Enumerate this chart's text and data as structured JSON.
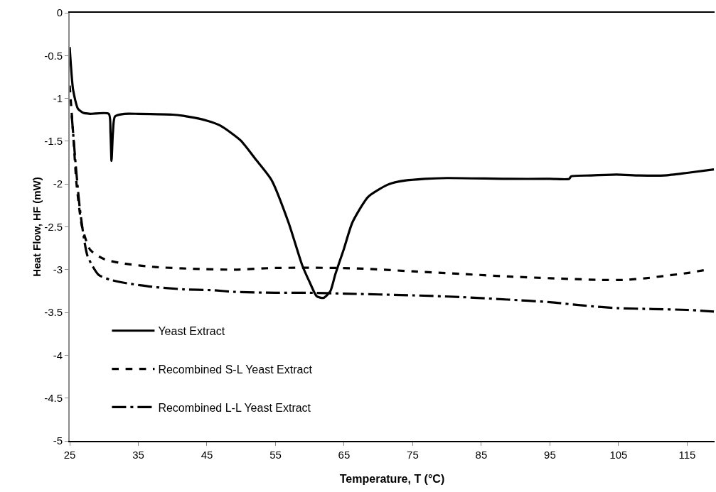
{
  "chart_data": {
    "type": "line",
    "xlabel": "Temperature, T (°C)",
    "ylabel": "Heat Flow, HF (mW)",
    "xlim": [
      25,
      119
    ],
    "xticks": [
      25,
      35,
      45,
      55,
      65,
      75,
      85,
      95,
      105,
      115
    ],
    "ylim": [
      -5,
      0
    ],
    "yticks": [
      0,
      -0.5,
      -1,
      -1.5,
      -2,
      -2.5,
      -3,
      -3.5,
      -4,
      -4.5,
      -5
    ],
    "grid": false,
    "legend": "bottom left",
    "marker": "none",
    "series": [
      {
        "name": "Yeast Extract",
        "color": "#000000",
        "line_style": "solid",
        "x": [
          25,
          25.5,
          26.2,
          27,
          28,
          30.7,
          30.95,
          31.1,
          31.3,
          31.6,
          33,
          35,
          40,
          42,
          45,
          47,
          49.9,
          52,
          54.4,
          56.9,
          58.9,
          60,
          61,
          62,
          63,
          63.7,
          65,
          66.2,
          68.5,
          71.3,
          73,
          76.8,
          80,
          88.9,
          95,
          97.8,
          98.1,
          101,
          104.7,
          108,
          111.7,
          115,
          118.9
        ],
        "values": [
          -0.4,
          -0.9,
          -1.12,
          -1.17,
          -1.18,
          -1.18,
          -1.4,
          -1.73,
          -1.4,
          -1.21,
          -1.18,
          -1.18,
          -1.19,
          -1.21,
          -1.26,
          -1.32,
          -1.49,
          -1.7,
          -1.95,
          -2.45,
          -2.95,
          -3.15,
          -3.31,
          -3.33,
          -3.25,
          -3.06,
          -2.75,
          -2.45,
          -2.15,
          -2.01,
          -1.97,
          -1.94,
          -1.93,
          -1.94,
          -1.94,
          -1.94,
          -1.91,
          -1.9,
          -1.89,
          -1.9,
          -1.9,
          -1.87,
          -1.83
        ]
      },
      {
        "name": "Recombined S-L Yeast Extract",
        "color": "#000000",
        "line_style": "dashed",
        "x": [
          25,
          25.5,
          26,
          26.8,
          28,
          30.1,
          33,
          37.5,
          43,
          49,
          55,
          64,
          68.2,
          75,
          82,
          88.9,
          95,
          102.4,
          105.8,
          109,
          112,
          115,
          117.9
        ],
        "values": [
          -0.85,
          -1.4,
          -2.0,
          -2.5,
          -2.77,
          -2.88,
          -2.93,
          -2.97,
          -2.99,
          -3.0,
          -2.98,
          -2.98,
          -2.99,
          -3.02,
          -3.05,
          -3.08,
          -3.1,
          -3.12,
          -3.12,
          -3.1,
          -3.07,
          -3.04,
          -3.0
        ]
      },
      {
        "name": "Recombined L-L Yeast Extract",
        "color": "#000000",
        "line_style": "dashed",
        "x": [
          25.3,
          25.8,
          26.5,
          27.6,
          29.2,
          31,
          33.4,
          37,
          41.6,
          45.8,
          49.1,
          55,
          59.5,
          65,
          75,
          82,
          88.9,
          95,
          100,
          105,
          110,
          115,
          118.9
        ],
        "values": [
          -1.2,
          -1.7,
          -2.3,
          -2.84,
          -3.06,
          -3.12,
          -3.16,
          -3.2,
          -3.23,
          -3.24,
          -3.26,
          -3.27,
          -3.27,
          -3.28,
          -3.3,
          -3.32,
          -3.35,
          -3.38,
          -3.42,
          -3.45,
          -3.46,
          -3.47,
          -3.49
        ]
      }
    ]
  }
}
